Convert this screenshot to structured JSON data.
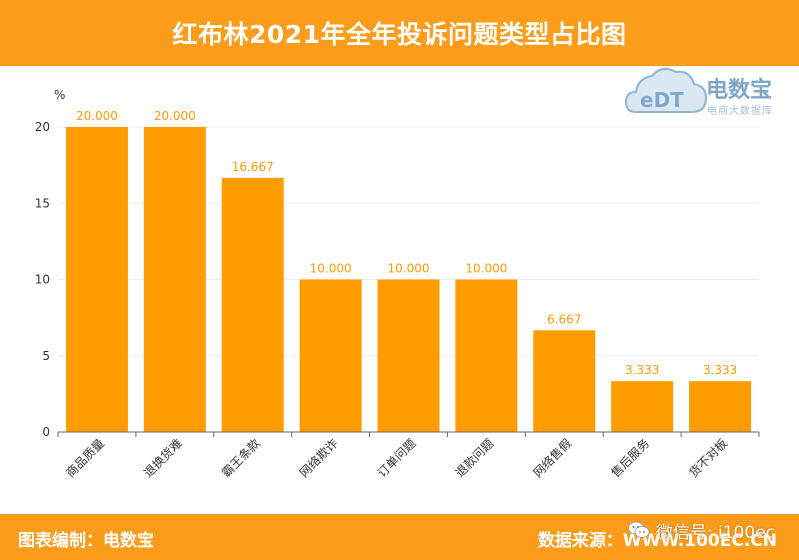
{
  "header": {
    "title": "红布林2021年全年投诉问题类型占比图"
  },
  "footer": {
    "left_text": "图表编制：电数宝",
    "right_text": "数据来源：WWW.100EC.CN"
  },
  "watermark": {
    "icon": "wechat-icon",
    "text": "微信号: i100ec"
  },
  "logo": {
    "mark_text": "eDT",
    "brand": "电数宝",
    "subtitle": "电商大数据库"
  },
  "colors": {
    "accent": "#fb9c1b",
    "bar": "#ff9c00",
    "label": "#ff9c00"
  },
  "chart_data": {
    "type": "bar",
    "title": "红布林2021年全年投诉问题类型占比图",
    "xlabel": "",
    "ylabel": "%",
    "ylim": [
      0,
      20
    ],
    "yticks": [
      0,
      5,
      10,
      15,
      20
    ],
    "grid": true,
    "categories": [
      "商品质量",
      "退换货难",
      "霸王条款",
      "网络欺诈",
      "订单问题",
      "退款问题",
      "网络售假",
      "售后服务",
      "货不对板"
    ],
    "values": [
      20.0,
      20.0,
      16.667,
      10.0,
      10.0,
      10.0,
      6.667,
      3.333,
      3.333
    ],
    "value_labels": [
      "20.000",
      "20.000",
      "16.667",
      "10.000",
      "10.000",
      "10.000",
      "6.667",
      "3.333",
      "3.333"
    ]
  }
}
